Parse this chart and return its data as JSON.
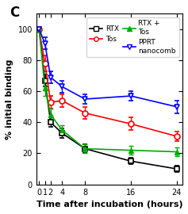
{
  "time_points": [
    0,
    1,
    2,
    4,
    8,
    16,
    24
  ],
  "RTX": [
    100,
    67,
    40,
    33,
    23,
    15,
    10
  ],
  "RTX_err": [
    0,
    4,
    3,
    3,
    3,
    2,
    2
  ],
  "Tos": [
    100,
    78,
    53,
    54,
    46,
    39,
    31
  ],
  "Tos_err": [
    0,
    5,
    4,
    4,
    4,
    4,
    3
  ],
  "RTX_Tos": [
    100,
    62,
    45,
    35,
    23,
    22,
    21
  ],
  "RTX_Tos_err": [
    0,
    5,
    4,
    3,
    3,
    3,
    3
  ],
  "PPRT": [
    100,
    91,
    69,
    63,
    55,
    57,
    50
  ],
  "PPRT_err": [
    0,
    4,
    4,
    4,
    3,
    3,
    4
  ],
  "RTX_color": "#000000",
  "Tos_color": "#ff0000",
  "RTX_Tos_color": "#00aa00",
  "PPRT_color": "#0000ff",
  "xlabel": "Time after incubation (hours)",
  "ylabel": "% initial binding",
  "ylim": [
    0,
    110
  ],
  "xlim": [
    -0.5,
    25
  ],
  "xticks": [
    0,
    1,
    2,
    4,
    8,
    16,
    24
  ],
  "yticks": [
    0,
    20,
    40,
    60,
    80,
    100
  ],
  "panel_label": "C",
  "legend_labels": [
    "RTX",
    "Tos",
    "RTX +\nTos",
    "PPRT\nnanocomb"
  ]
}
